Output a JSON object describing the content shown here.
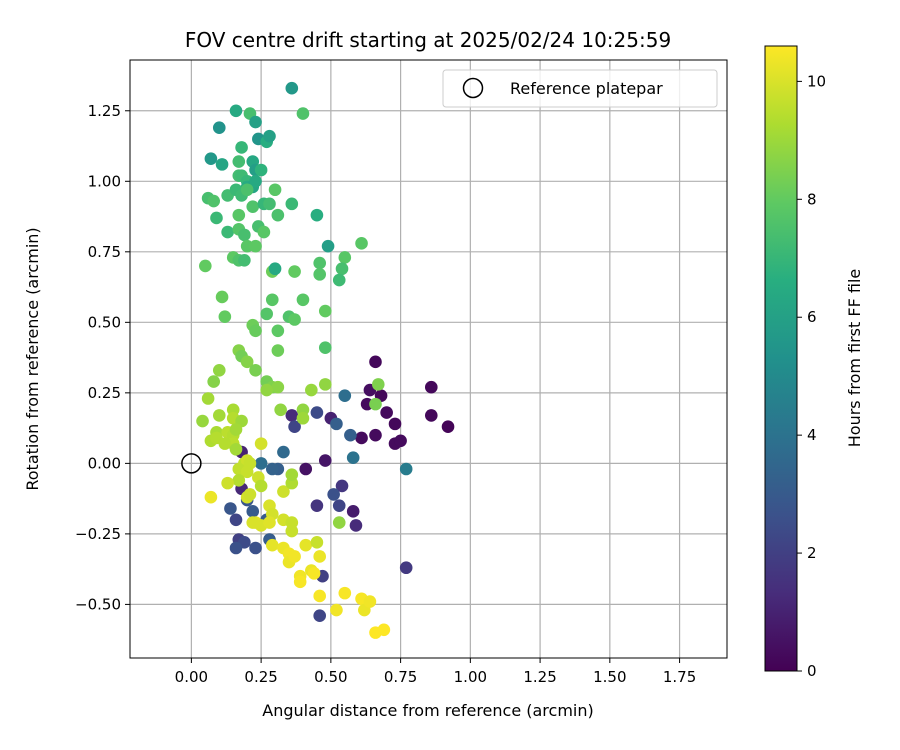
{
  "chart_data": {
    "type": "scatter",
    "title": "FOV centre drift starting at 2025/02/24 10:25:59",
    "xlabel": "Angular distance from reference (arcmin)",
    "ylabel": "Rotation from reference (arcmin)",
    "xlim": [
      -0.22,
      1.92
    ],
    "ylim": [
      -0.69,
      1.43
    ],
    "xticks": [
      "0.00",
      "0.25",
      "0.50",
      "0.75",
      "1.00",
      "1.25",
      "1.50",
      "1.75"
    ],
    "yticks": [
      "−0.50",
      "−0.25",
      "0.00",
      "0.25",
      "0.50",
      "0.75",
      "1.00",
      "1.25"
    ],
    "xtick_values": [
      0,
      0.25,
      0.5,
      0.75,
      1.0,
      1.25,
      1.5,
      1.75
    ],
    "ytick_values": [
      -0.5,
      -0.25,
      0,
      0.25,
      0.5,
      0.75,
      1.0,
      1.25
    ],
    "grid": true,
    "legend": {
      "placement": "top-right",
      "entries": [
        {
          "label": "Reference platepar",
          "marker": "open-circle"
        }
      ]
    },
    "reference_point": {
      "x": 0.0,
      "y": 0.0
    },
    "colorbar": {
      "label": "Hours from first FF file",
      "range": [
        0,
        10.6
      ],
      "ticks": [
        "0",
        "2",
        "4",
        "6",
        "8",
        "10"
      ],
      "tick_values": [
        0,
        2,
        4,
        6,
        8,
        10
      ],
      "colormap": "viridis"
    },
    "series": [
      {
        "points": [
          [
            0.66,
            0.36,
            0.2
          ],
          [
            0.68,
            0.24,
            0.2
          ],
          [
            0.7,
            0.18,
            0.3
          ],
          [
            0.73,
            0.14,
            0.2
          ],
          [
            0.73,
            0.07,
            0.3
          ],
          [
            0.75,
            0.08,
            0.3
          ],
          [
            0.86,
            0.27,
            0.2
          ],
          [
            0.86,
            0.17,
            0.2
          ],
          [
            0.92,
            0.13,
            0.1
          ],
          [
            0.64,
            0.26,
            0.4
          ],
          [
            0.66,
            0.1,
            0.3
          ],
          [
            0.61,
            0.09,
            0.3
          ],
          [
            0.63,
            0.21,
            0.3
          ],
          [
            0.58,
            -0.17,
            0.8
          ],
          [
            0.59,
            -0.22,
            1.3
          ],
          [
            0.77,
            -0.37,
            1.8
          ],
          [
            0.48,
            0.01,
            0.6
          ],
          [
            0.41,
            -0.02,
            0.5
          ],
          [
            0.5,
            0.16,
            1.0
          ],
          [
            0.45,
            -0.15,
            1.6
          ],
          [
            0.54,
            -0.08,
            1.7
          ],
          [
            0.53,
            -0.15,
            2.2
          ],
          [
            0.47,
            -0.4,
            2.0
          ],
          [
            0.46,
            -0.54,
            2.2
          ],
          [
            0.36,
            0.17,
            1.3
          ],
          [
            0.37,
            0.13,
            2.2
          ],
          [
            0.45,
            0.18,
            2.4
          ],
          [
            0.51,
            -0.11,
            2.6
          ],
          [
            0.52,
            0.14,
            3.2
          ],
          [
            0.57,
            0.1,
            3.2
          ],
          [
            0.55,
            0.24,
            3.8
          ],
          [
            0.58,
            0.02,
            4.0
          ],
          [
            0.77,
            -0.02,
            4.4
          ],
          [
            0.33,
            0.04,
            3.6
          ],
          [
            0.31,
            -0.02,
            3.2
          ],
          [
            0.29,
            -0.02,
            3.3
          ],
          [
            0.25,
            0.0,
            3.8
          ],
          [
            0.18,
            0.04,
            1.0
          ],
          [
            0.18,
            -0.09,
            1.2
          ],
          [
            0.16,
            -0.2,
            2.2
          ],
          [
            0.17,
            -0.27,
            2.0
          ],
          [
            0.19,
            -0.28,
            2.4
          ],
          [
            0.16,
            -0.3,
            2.6
          ],
          [
            0.23,
            -0.3,
            2.6
          ],
          [
            0.22,
            -0.17,
            3.0
          ],
          [
            0.14,
            -0.16,
            2.8
          ],
          [
            0.2,
            -0.13,
            2.8
          ],
          [
            0.28,
            -0.27,
            3.1
          ],
          [
            0.27,
            -0.2,
            3.0
          ],
          [
            0.36,
            1.33,
            5.6
          ],
          [
            0.4,
            1.24,
            7.6
          ],
          [
            0.16,
            1.25,
            6.4
          ],
          [
            0.21,
            1.24,
            7.4
          ],
          [
            0.23,
            1.21,
            6.0
          ],
          [
            0.1,
            1.19,
            5.4
          ],
          [
            0.24,
            1.15,
            5.5
          ],
          [
            0.27,
            1.14,
            6.6
          ],
          [
            0.28,
            1.16,
            6.0
          ],
          [
            0.07,
            1.08,
            5.6
          ],
          [
            0.11,
            1.06,
            6.2
          ],
          [
            0.17,
            1.07,
            7.3
          ],
          [
            0.18,
            1.12,
            7.0
          ],
          [
            0.22,
            1.07,
            6.3
          ],
          [
            0.23,
            1.04,
            5.9
          ],
          [
            0.25,
            1.04,
            6.8
          ],
          [
            0.17,
            1.02,
            7.3
          ],
          [
            0.18,
            1.02,
            7.2
          ],
          [
            0.2,
            1.0,
            7.0
          ],
          [
            0.2,
            0.98,
            6.5
          ],
          [
            0.22,
            0.98,
            6.2
          ],
          [
            0.23,
            1.0,
            6.4
          ],
          [
            0.3,
            0.97,
            7.8
          ],
          [
            0.36,
            0.92,
            7.1
          ],
          [
            0.06,
            0.94,
            7.4
          ],
          [
            0.08,
            0.93,
            7.6
          ],
          [
            0.13,
            0.95,
            7.3
          ],
          [
            0.16,
            0.97,
            7.1
          ],
          [
            0.18,
            0.95,
            7.2
          ],
          [
            0.2,
            0.97,
            7.5
          ],
          [
            0.22,
            0.91,
            7.6
          ],
          [
            0.26,
            0.92,
            7.0
          ],
          [
            0.28,
            0.92,
            7.3
          ],
          [
            0.31,
            0.88,
            7.5
          ],
          [
            0.09,
            0.87,
            7.1
          ],
          [
            0.17,
            0.88,
            7.8
          ],
          [
            0.45,
            0.88,
            6.6
          ],
          [
            0.49,
            0.77,
            5.9
          ],
          [
            0.61,
            0.78,
            7.8
          ],
          [
            0.13,
            0.82,
            7.1
          ],
          [
            0.17,
            0.83,
            7.7
          ],
          [
            0.19,
            0.81,
            7.4
          ],
          [
            0.24,
            0.84,
            7.4
          ],
          [
            0.26,
            0.82,
            7.8
          ],
          [
            0.2,
            0.77,
            7.8
          ],
          [
            0.23,
            0.77,
            7.9
          ],
          [
            0.15,
            0.73,
            7.9
          ],
          [
            0.17,
            0.72,
            7.6
          ],
          [
            0.19,
            0.72,
            7.3
          ],
          [
            0.05,
            0.7,
            8.0
          ],
          [
            0.29,
            0.68,
            8.2
          ],
          [
            0.3,
            0.69,
            6.4
          ],
          [
            0.37,
            0.68,
            8.0
          ],
          [
            0.46,
            0.71,
            7.6
          ],
          [
            0.46,
            0.67,
            7.7
          ],
          [
            0.55,
            0.73,
            7.8
          ],
          [
            0.54,
            0.69,
            7.4
          ],
          [
            0.53,
            0.65,
            7.2
          ],
          [
            0.11,
            0.59,
            8.1
          ],
          [
            0.29,
            0.58,
            7.8
          ],
          [
            0.4,
            0.58,
            7.8
          ],
          [
            0.12,
            0.52,
            8.0
          ],
          [
            0.27,
            0.53,
            7.7
          ],
          [
            0.35,
            0.52,
            7.6
          ],
          [
            0.37,
            0.51,
            7.9
          ],
          [
            0.48,
            0.54,
            8.0
          ],
          [
            0.22,
            0.49,
            8.2
          ],
          [
            0.23,
            0.47,
            8.1
          ],
          [
            0.31,
            0.47,
            7.9
          ],
          [
            0.48,
            0.41,
            7.6
          ],
          [
            0.17,
            0.4,
            8.6
          ],
          [
            0.18,
            0.38,
            8.3
          ],
          [
            0.2,
            0.36,
            8.6
          ],
          [
            0.23,
            0.33,
            8.4
          ],
          [
            0.1,
            0.33,
            8.8
          ],
          [
            0.31,
            0.4,
            8.2
          ],
          [
            0.08,
            0.29,
            8.6
          ],
          [
            0.27,
            0.29,
            8.3
          ],
          [
            0.29,
            0.27,
            8.5
          ],
          [
            0.31,
            0.27,
            8.7
          ],
          [
            0.27,
            0.26,
            8.8
          ],
          [
            0.43,
            0.26,
            8.9
          ],
          [
            0.48,
            0.28,
            8.8
          ],
          [
            0.67,
            0.28,
            8.5
          ],
          [
            0.66,
            0.21,
            8.4
          ],
          [
            0.06,
            0.23,
            9.1
          ],
          [
            0.04,
            0.15,
            8.9
          ],
          [
            0.1,
            0.17,
            9.1
          ],
          [
            0.15,
            0.19,
            9.2
          ],
          [
            0.15,
            0.16,
            9.4
          ],
          [
            0.18,
            0.15,
            9.0
          ],
          [
            0.32,
            0.19,
            8.8
          ],
          [
            0.4,
            0.19,
            8.8
          ],
          [
            0.4,
            0.16,
            9.0
          ],
          [
            0.53,
            -0.21,
            8.8
          ],
          [
            0.09,
            0.11,
            9.2
          ],
          [
            0.07,
            0.08,
            9.3
          ],
          [
            0.09,
            0.09,
            9.4
          ],
          [
            0.13,
            0.11,
            9.5
          ],
          [
            0.15,
            0.1,
            9.4
          ],
          [
            0.16,
            0.12,
            9.1
          ],
          [
            0.15,
            0.07,
            9.5
          ],
          [
            0.12,
            0.07,
            9.4
          ],
          [
            0.16,
            0.05,
            9.1
          ],
          [
            0.19,
            0.0,
            9.6
          ],
          [
            0.2,
            0.01,
            9.8
          ],
          [
            0.17,
            -0.02,
            9.6
          ],
          [
            0.21,
            0.0,
            9.7
          ],
          [
            0.25,
            0.07,
            9.9
          ],
          [
            0.24,
            -0.05,
            9.8
          ],
          [
            0.2,
            -0.03,
            9.7
          ],
          [
            0.17,
            -0.06,
            9.4
          ],
          [
            0.13,
            -0.07,
            9.8
          ],
          [
            0.07,
            -0.12,
            10.3
          ],
          [
            0.25,
            -0.08,
            9.4
          ],
          [
            0.33,
            -0.1,
            9.8
          ],
          [
            0.36,
            -0.07,
            9.3
          ],
          [
            0.36,
            -0.04,
            9.1
          ],
          [
            0.2,
            -0.12,
            9.9
          ],
          [
            0.21,
            -0.11,
            9.8
          ],
          [
            0.28,
            -0.15,
            10.0
          ],
          [
            0.29,
            -0.18,
            9.9
          ],
          [
            0.33,
            -0.2,
            9.9
          ],
          [
            0.36,
            -0.21,
            9.7
          ],
          [
            0.36,
            -0.24,
            9.7
          ],
          [
            0.23,
            -0.21,
            10.2
          ],
          [
            0.22,
            -0.21,
            10.0
          ],
          [
            0.25,
            -0.22,
            10.0
          ],
          [
            0.28,
            -0.21,
            10.1
          ],
          [
            0.29,
            -0.29,
            10.2
          ],
          [
            0.33,
            -0.3,
            10.3
          ],
          [
            0.35,
            -0.32,
            10.4
          ],
          [
            0.35,
            -0.35,
            10.3
          ],
          [
            0.37,
            -0.33,
            10.4
          ],
          [
            0.41,
            -0.29,
            10.2
          ],
          [
            0.45,
            -0.28,
            9.7
          ],
          [
            0.46,
            -0.33,
            10.3
          ],
          [
            0.39,
            -0.4,
            10.4
          ],
          [
            0.39,
            -0.42,
            10.5
          ],
          [
            0.43,
            -0.38,
            10.3
          ],
          [
            0.44,
            -0.39,
            10.5
          ],
          [
            0.46,
            -0.47,
            10.5
          ],
          [
            0.55,
            -0.46,
            10.5
          ],
          [
            0.52,
            -0.52,
            10.4
          ],
          [
            0.61,
            -0.48,
            10.5
          ],
          [
            0.62,
            -0.52,
            10.3
          ],
          [
            0.64,
            -0.49,
            10.4
          ],
          [
            0.66,
            -0.6,
            10.6
          ],
          [
            0.69,
            -0.59,
            10.6
          ]
        ]
      }
    ]
  }
}
